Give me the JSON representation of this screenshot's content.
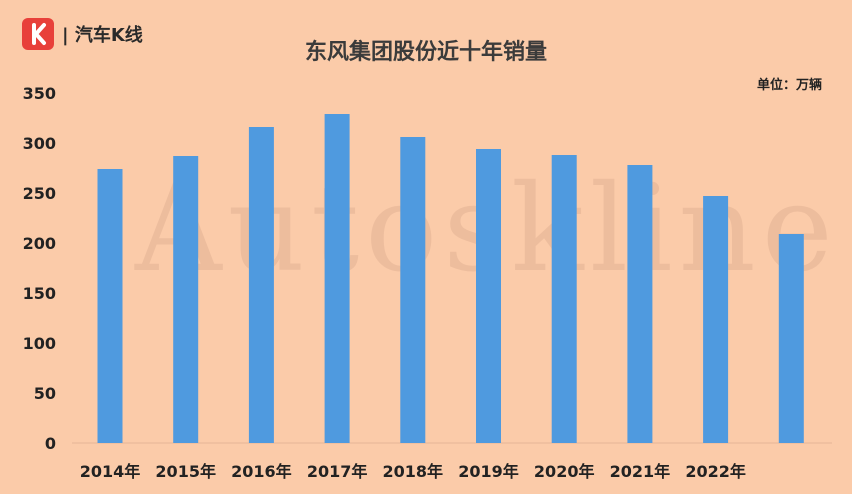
{
  "brand": {
    "logo_letter": "K",
    "logo_text": "| 汽车K线",
    "watermark": "Autoskline",
    "colors": {
      "logo_bg": "#E8403A",
      "background": "#FBCBA9",
      "bar": "#4F9ADF"
    }
  },
  "chart_data": {
    "type": "bar",
    "title": "东风集团股份近十年销量",
    "unit": "单位：万辆",
    "categories": [
      "2014年",
      "2015年",
      "2016年",
      "2017年",
      "2018年",
      "2019年",
      "2020年",
      "2021年",
      "2022年",
      ""
    ],
    "values": [
      274,
      287,
      316,
      329,
      306,
      294,
      288,
      278,
      247,
      209
    ],
    "ylim": [
      0,
      350
    ],
    "yticks": [
      0,
      50,
      100,
      150,
      200,
      250,
      300,
      350
    ],
    "grid": false,
    "legend": "none"
  }
}
